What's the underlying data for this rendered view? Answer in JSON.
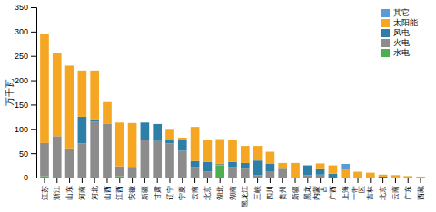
{
  "chart_data": {
    "type": "bar",
    "stacked": true,
    "categories": [
      "江苏",
      "浙江",
      "山东",
      "河南",
      "河北",
      "山西",
      "江西",
      "安徽",
      "新疆",
      "甘肃",
      "辽宁",
      "宁夏",
      "云南",
      "北京",
      "湖北",
      "湖南",
      "黑龙江",
      "三峡",
      "四川",
      "贵州",
      "新疆",
      "黑龙",
      "内蒙\n古",
      "广西",
      "上海",
      "一带\n区",
      "吉林",
      "北京",
      "云南",
      "广东",
      "西藏"
    ],
    "series": [
      {
        "name": "水电",
        "color": "#4CAF50",
        "values": [
          3,
          0,
          0,
          0,
          0,
          0,
          3,
          0,
          0,
          0,
          0,
          0,
          0,
          0,
          25,
          0,
          0,
          0,
          0,
          0,
          0,
          0,
          0,
          0,
          0,
          0,
          0,
          0,
          0,
          0,
          0
        ]
      },
      {
        "name": "火电",
        "color": "#8C8C8C",
        "values": [
          68,
          85,
          60,
          70,
          115,
          110,
          20,
          22,
          78,
          75,
          70,
          55,
          22,
          12,
          4,
          22,
          20,
          5,
          13,
          20,
          0,
          5,
          6,
          0,
          0,
          0,
          0,
          0,
          0,
          0,
          0
        ]
      },
      {
        "name": "风电",
        "color": "#2E7FA8",
        "values": [
          0,
          0,
          0,
          55,
          5,
          0,
          0,
          0,
          35,
          35,
          8,
          22,
          12,
          20,
          0,
          10,
          10,
          30,
          15,
          0,
          0,
          20,
          13,
          8,
          0,
          0,
          0,
          2,
          0,
          0,
          0
        ]
      },
      {
        "name": "太阳能",
        "color": "#F5A623",
        "values": [
          225,
          170,
          170,
          95,
          100,
          45,
          90,
          90,
          0,
          0,
          22,
          5,
          70,
          45,
          50,
          45,
          35,
          30,
          25,
          10,
          30,
          0,
          10,
          17,
          18,
          12,
          10,
          4,
          5,
          3,
          2
        ]
      },
      {
        "name": "其它",
        "color": "#5B9BD5",
        "values": [
          0,
          0,
          0,
          0,
          0,
          0,
          0,
          0,
          0,
          0,
          0,
          0,
          0,
          0,
          0,
          0,
          0,
          0,
          0,
          0,
          0,
          0,
          0,
          0,
          10,
          0,
          0,
          0,
          0,
          0,
          0
        ]
      }
    ],
    "y_label": "万千瓦",
    "ylim": [
      0,
      350
    ],
    "yticks": [
      0,
      50,
      100,
      150,
      200,
      250,
      300,
      350
    ],
    "grid": false,
    "legend": "upper right"
  }
}
